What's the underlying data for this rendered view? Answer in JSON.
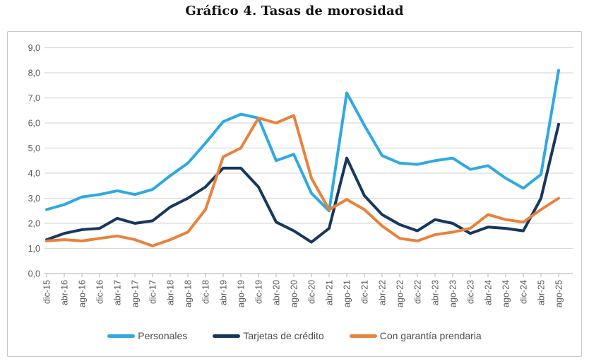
{
  "title": "Gráfico 4. Tasas de morosidad",
  "chart_data": {
    "type": "line",
    "title": "Gráfico 4. Tasas de morosidad",
    "xlabel": "",
    "ylabel": "",
    "ylim": [
      0,
      9
    ],
    "grid": true,
    "legend_position": "bottom",
    "y_ticks": [
      "0,0",
      "1,0",
      "2,0",
      "3,0",
      "4,0",
      "5,0",
      "6,0",
      "7,0",
      "8,0",
      "9,0"
    ],
    "categories": [
      "dic-15",
      "abr-16",
      "ago-16",
      "dic-16",
      "abr-17",
      "ago-17",
      "dic-17",
      "abr-18",
      "ago-18",
      "dic-18",
      "abr-19",
      "ago-19",
      "dic-19",
      "abr-20",
      "ago-20",
      "dic-20",
      "abr-21",
      "ago-21",
      "dic-21",
      "abr-22",
      "ago-22",
      "dic-22",
      "abr-23",
      "ago-23",
      "dic-23",
      "abr-24",
      "ago-24",
      "dic-24",
      "abr-25",
      "ago-25"
    ],
    "series": [
      {
        "name": "Personales",
        "color": "#2FA9E1",
        "values": [
          2.55,
          2.75,
          3.05,
          3.15,
          3.3,
          3.15,
          3.35,
          3.9,
          4.4,
          5.2,
          6.05,
          6.35,
          6.2,
          4.5,
          4.75,
          3.2,
          2.5,
          7.2,
          5.9,
          4.7,
          4.4,
          4.35,
          4.5,
          4.6,
          4.15,
          4.3,
          3.8,
          3.4,
          3.95,
          8.1
        ]
      },
      {
        "name": "Tarjetas de crédito",
        "color": "#17375E",
        "values": [
          1.35,
          1.6,
          1.75,
          1.8,
          2.2,
          2.0,
          2.1,
          2.65,
          3.0,
          3.45,
          4.2,
          4.2,
          3.45,
          2.05,
          1.7,
          1.25,
          1.8,
          4.6,
          3.1,
          2.35,
          1.95,
          1.7,
          2.15,
          2.0,
          1.6,
          1.85,
          1.8,
          1.7,
          3.0,
          5.95
        ]
      },
      {
        "name": "Con garantía prendaria",
        "color": "#E8823C",
        "values": [
          1.3,
          1.35,
          1.3,
          1.4,
          1.5,
          1.35,
          1.1,
          1.35,
          1.65,
          2.55,
          4.65,
          5.0,
          6.2,
          6.0,
          6.3,
          3.8,
          2.55,
          2.95,
          2.55,
          1.9,
          1.4,
          1.3,
          1.55,
          1.65,
          1.8,
          2.35,
          2.15,
          2.05,
          2.55,
          3.0
        ]
      }
    ]
  },
  "colors": {
    "gridline": "#d9d9d9",
    "axis_line": "#bfbfbf",
    "tick_label": "#595959",
    "legend_text": "#4d4d4d",
    "box_border": "#c8c8c8"
  }
}
